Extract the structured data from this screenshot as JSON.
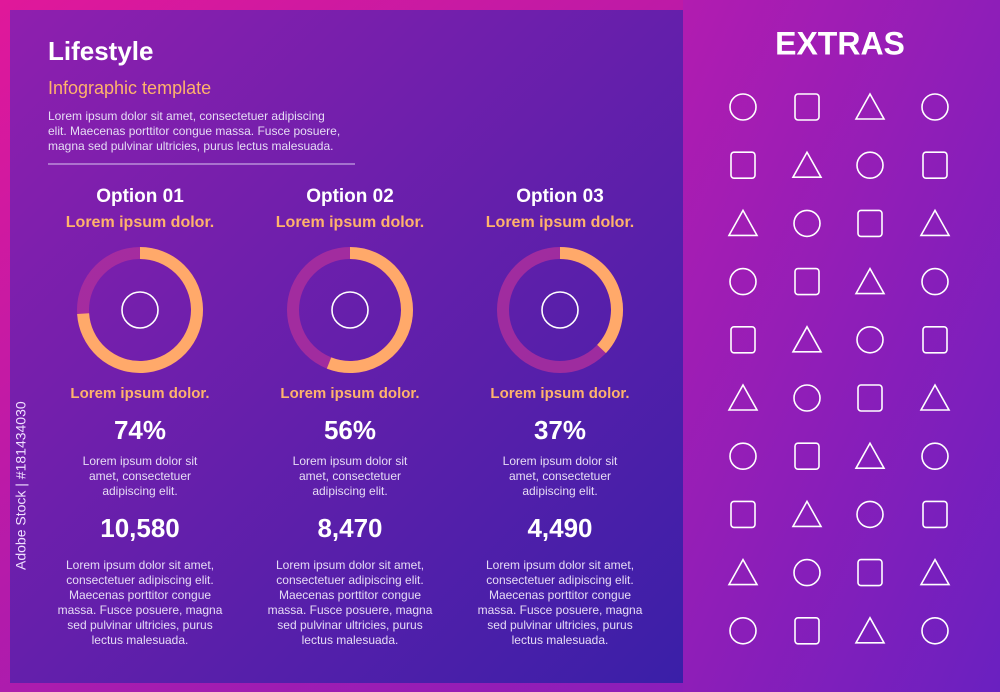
{
  "header": {
    "title": "Lifestyle",
    "subtitle": "Infographic template",
    "text": [
      "Lorem ipsum dolor sit amet, consectetuer adipiscing",
      "elit. Maecenas porttitor congue massa. Fusce posuere,",
      "magna sed pulvinar ultricies, purus lectus malesuada."
    ]
  },
  "options": [
    {
      "title": "Option 01",
      "subtitle": "Lorem ipsum dolor.",
      "label": "Lorem ipsum dolor.",
      "percent": {
        "value": 74,
        "label": "74%"
      },
      "percent_text": [
        "Lorem ipsum dolor sit",
        "amet, consectetuer",
        "adipiscing elit."
      ],
      "count": "10,580",
      "count_text": [
        "Lorem ipsum dolor sit amet,",
        "consectetuer adipiscing elit.",
        "Maecenas porttitor congue",
        "massa. Fusce posuere, magna",
        "sed pulvinar ultricies, purus",
        "lectus malesuada."
      ]
    },
    {
      "title": "Option 02",
      "subtitle": "Lorem ipsum dolor.",
      "label": "Lorem ipsum dolor.",
      "percent": {
        "value": 56,
        "label": "56%"
      },
      "percent_text": [
        "Lorem ipsum dolor sit",
        "amet, consectetuer",
        "adipiscing elit."
      ],
      "count": "8,470",
      "count_text": [
        "Lorem ipsum dolor sit amet,",
        "consectetuer adipiscing elit.",
        "Maecenas porttitor congue",
        "massa. Fusce posuere, magna",
        "sed pulvinar ultricies, purus",
        "lectus malesuada."
      ]
    },
    {
      "title": "Option 03",
      "subtitle": "Lorem ipsum dolor.",
      "label": "Lorem ipsum dolor.",
      "percent": {
        "value": 37,
        "label": "37%"
      },
      "percent_text": [
        "Lorem ipsum dolor sit",
        "amet, consectetuer",
        "adipiscing elit."
      ],
      "count": "4,490",
      "count_text": [
        "Lorem ipsum dolor sit amet,",
        "consectetuer adipiscing elit.",
        "Maecenas porttitor congue",
        "massa. Fusce posuere, magna",
        "sed pulvinar ultricies, purus",
        "lectus malesuada."
      ]
    }
  ],
  "extras": {
    "title": "EXTRAS"
  },
  "watermark": "Adobe Stock | #181434030"
}
